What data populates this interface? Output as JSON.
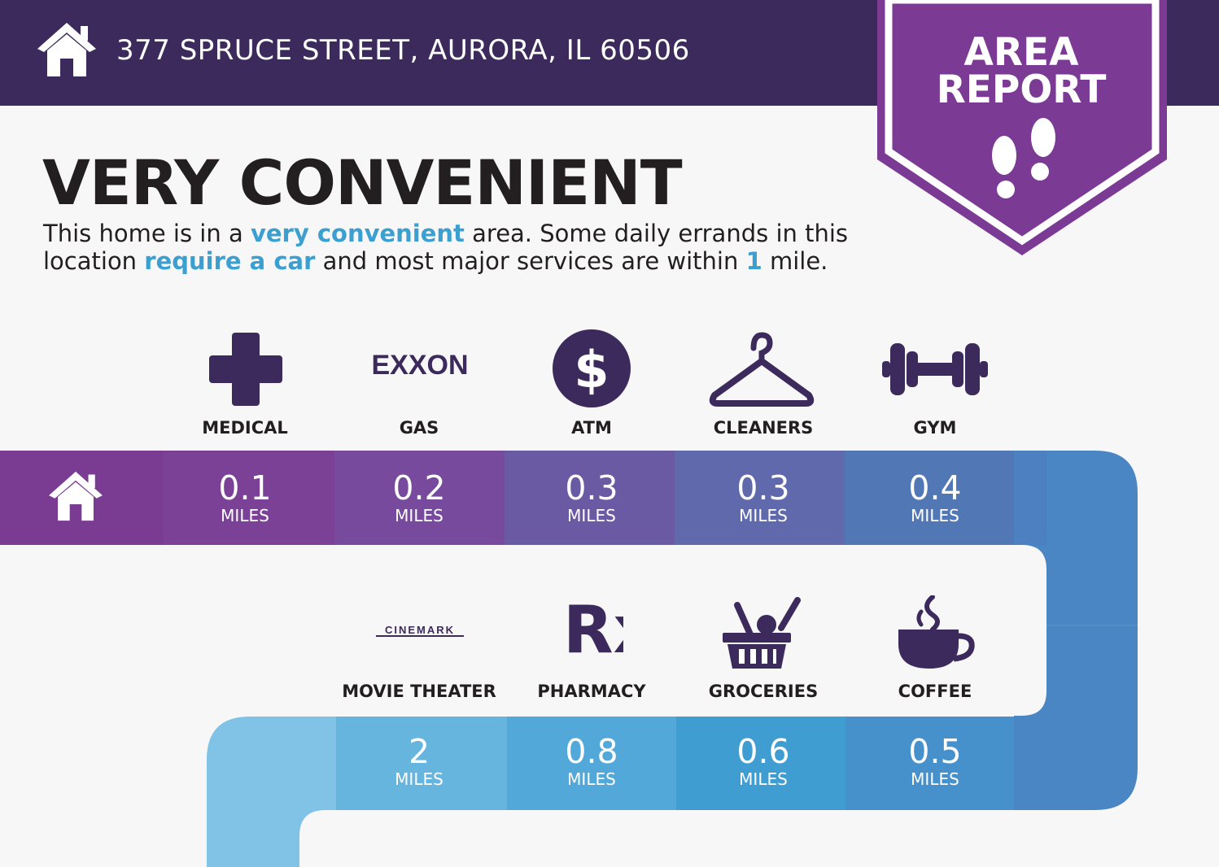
{
  "header": {
    "address": "377 SPRUCE STREET, AURORA, IL 60506",
    "bar_color": "#3b2a5b"
  },
  "badge": {
    "line1": "AREA",
    "line2": "REPORT",
    "color": "#7b3a93"
  },
  "summary": {
    "title": "VERY CONVENIENT",
    "desc_1": "This home is in a ",
    "desc_hl_1": "very convenient",
    "desc_2": " area. Some daily errands in this location ",
    "desc_hl_2": "require a car",
    "desc_3": " and most major services are within ",
    "desc_hl_3": "1",
    "desc_4": " mile.",
    "highlight_color": "#3b9fd0"
  },
  "row1": [
    {
      "label": "MEDICAL",
      "icon": "medical-cross-icon",
      "distance": "0.1",
      "unit": "MILES",
      "color": "#7a4196"
    },
    {
      "label": "GAS",
      "icon": "exxon-logo",
      "logo_text": "EXXON",
      "distance": "0.2",
      "unit": "MILES",
      "color": "#774a9d"
    },
    {
      "label": "ATM",
      "icon": "dollar-icon",
      "distance": "0.3",
      "unit": "MILES",
      "color": "#6a5aa3"
    },
    {
      "label": "CLEANERS",
      "icon": "hanger-icon",
      "distance": "0.3",
      "unit": "MILES",
      "color": "#5f69ac"
    },
    {
      "label": "GYM",
      "icon": "dumbbell-icon",
      "distance": "0.4",
      "unit": "MILES",
      "color": "#5277b5"
    }
  ],
  "row2": [
    {
      "label": "MOVIE THEATER",
      "icon": "cinemark-logo",
      "logo_text": "CINEMARK",
      "distance": "2",
      "unit": "MILES",
      "color": "#66b5de"
    },
    {
      "label": "PHARMACY",
      "icon": "rx-icon",
      "logo_text": "Rx",
      "distance": "0.8",
      "unit": "MILES",
      "color": "#52a8d8"
    },
    {
      "label": "GROCERIES",
      "icon": "grocery-basket-icon",
      "distance": "0.6",
      "unit": "MILES",
      "color": "#3f9dd2"
    },
    {
      "label": "COFFEE",
      "icon": "coffee-cup-icon",
      "distance": "0.5",
      "unit": "MILES",
      "color": "#4690cc"
    }
  ],
  "icon_color": "#3b2a5b"
}
